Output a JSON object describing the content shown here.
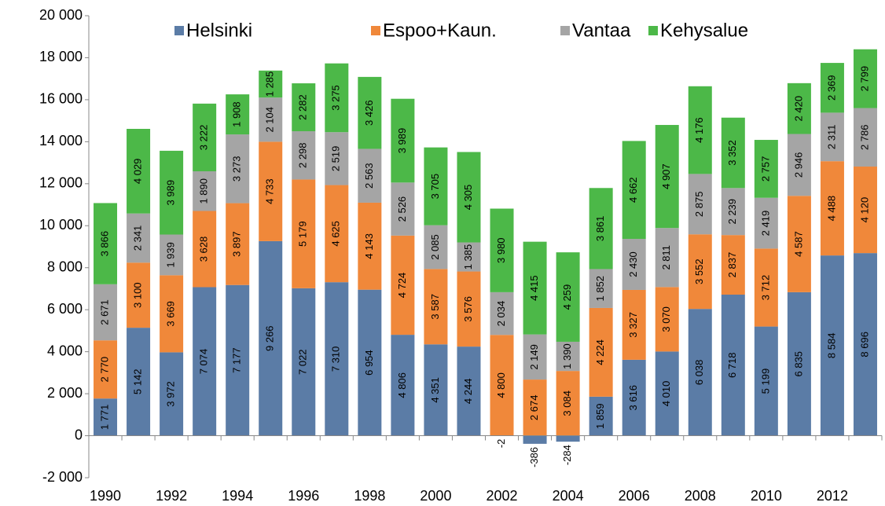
{
  "chart_data": {
    "type": "stacked-bar",
    "categories": [
      "1990",
      null,
      "1992",
      null,
      "1994",
      null,
      "1996",
      null,
      "1998",
      null,
      "2000",
      null,
      "2002",
      null,
      "2004",
      null,
      "2006",
      null,
      "2008",
      null,
      "2010",
      null,
      "2012",
      null
    ],
    "series": [
      {
        "name": "Helsinki",
        "color": "#5b7ca6",
        "values": [
          1771,
          5142,
          3972,
          7074,
          7177,
          9266,
          7022,
          7310,
          6954,
          4806,
          4351,
          4244,
          -2,
          -386,
          -284,
          1859,
          3616,
          4010,
          6038,
          6718,
          5199,
          6835,
          8584,
          8696
        ],
        "value_labels": [
          "1 771",
          "5 142",
          "3 972",
          "7 074",
          "7 177",
          "9 266",
          "7 022",
          "7 310",
          "6 954",
          "4 806",
          "4 351",
          "4 244",
          "-2",
          "-386",
          "-284",
          "1 859",
          "3 616",
          "4 010",
          "6 038",
          "6 718",
          "5 199",
          "6 835",
          "8 584",
          "8 696"
        ]
      },
      {
        "name": "Espoo+Kaun.",
        "color": "#f0883a",
        "values": [
          2770,
          3100,
          3669,
          3628,
          3897,
          4733,
          5179,
          4625,
          4143,
          4724,
          3587,
          3576,
          4800,
          2674,
          3084,
          4224,
          3327,
          3070,
          3552,
          2837,
          3712,
          4587,
          4488,
          4120
        ],
        "value_labels": [
          "2 770",
          "3 100",
          "3 669",
          "3 628",
          "3 897",
          "4 733",
          "5 179",
          "4 625",
          "4 143",
          "4 724",
          "3 587",
          "3 576",
          "4 800",
          "2 674",
          "3 084",
          "4 224",
          "3 327",
          "3 070",
          "3 552",
          "2 837",
          "3 712",
          "4 587",
          "4 488",
          "4 120"
        ]
      },
      {
        "name": "Vantaa",
        "color": "#a5a5a5",
        "values": [
          2671,
          2341,
          1939,
          1890,
          3273,
          2104,
          2298,
          2519,
          2563,
          2526,
          2085,
          1385,
          2034,
          2149,
          1390,
          1852,
          2430,
          2811,
          2875,
          2239,
          2419,
          2946,
          2311,
          2786
        ],
        "value_labels": [
          "2 671",
          "2 341",
          "1 939",
          "1 890",
          "3 273",
          "2 104",
          "2 298",
          "2 519",
          "2 563",
          "2 526",
          "2 085",
          "1 385",
          "2 034",
          "2 149",
          "1 390",
          "1 852",
          "2 430",
          "2 811",
          "2 875",
          "2 239",
          "2 419",
          "2 946",
          "2 311",
          "2 786"
        ]
      },
      {
        "name": "Kehysalue",
        "color": "#4cb848",
        "values": [
          3866,
          4029,
          3989,
          3222,
          1908,
          1285,
          2282,
          3275,
          3426,
          3989,
          3705,
          4305,
          3980,
          4415,
          4259,
          3861,
          4662,
          4907,
          4176,
          3352,
          2757,
          2420,
          2369,
          2799
        ],
        "value_labels": [
          "3 866",
          "4 029",
          "3 989",
          "3 222",
          "1 908",
          "1 285",
          "2 282",
          "3 275",
          "3 426",
          "3 989",
          "3 705",
          "4 305",
          "3 980",
          "4 415",
          "4 259",
          "3 861",
          "4 662",
          "4 907",
          "4 176",
          "3 352",
          "2 757",
          "2 420",
          "2 369",
          "2 799"
        ]
      }
    ],
    "ylim": [
      -2000,
      20000
    ],
    "yticks": [
      {
        "value": -2000,
        "label": "-2 000"
      },
      0,
      {
        "value": 2000,
        "label": "2 000"
      },
      {
        "value": 4000,
        "label": "4 000"
      },
      {
        "value": 6000,
        "label": "6 000"
      },
      {
        "value": 8000,
        "label": "8 000"
      },
      {
        "value": 10000,
        "label": "10 000"
      },
      {
        "value": 12000,
        "label": "12 000"
      },
      {
        "value": 14000,
        "label": "14 000"
      },
      {
        "value": 16000,
        "label": "16 000"
      },
      {
        "value": 18000,
        "label": "18 000"
      },
      {
        "value": 20000,
        "label": "20 000"
      }
    ],
    "grid": false,
    "legend": "top"
  }
}
